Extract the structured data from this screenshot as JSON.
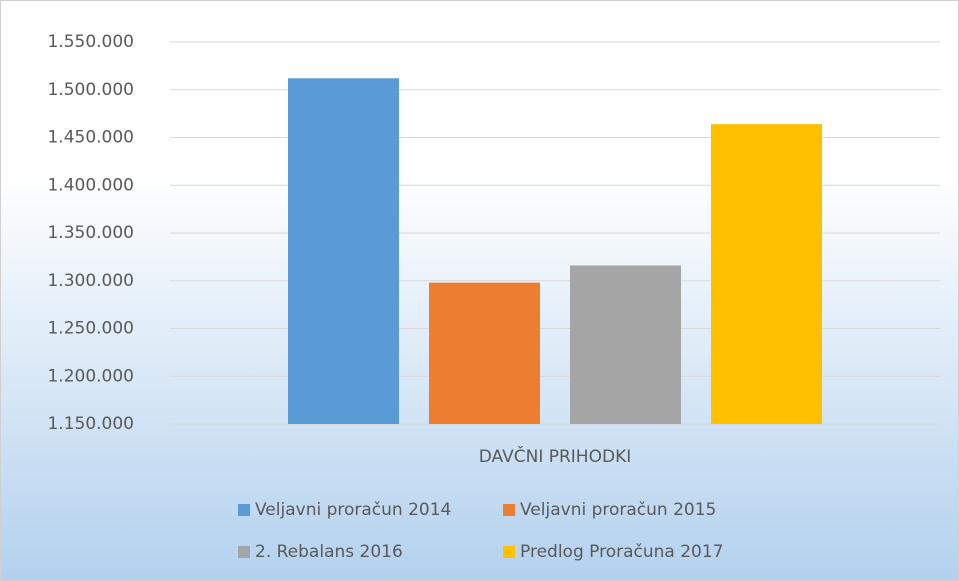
{
  "chart_data": {
    "type": "bar",
    "categories": [
      "DAVČNI PRIHODKI"
    ],
    "series": [
      {
        "name": "Veljavni proračun 2014",
        "color": "#5b9bd5",
        "values": [
          1512000
        ]
      },
      {
        "name": "Veljavni proračun 2015",
        "color": "#ed7d31",
        "values": [
          1298000
        ]
      },
      {
        "name": "2. Rebalans 2016",
        "color": "#a5a5a5",
        "values": [
          1316000
        ]
      },
      {
        "name": "Predlog Proračuna 2017",
        "color": "#ffc000",
        "values": [
          1464000
        ]
      }
    ],
    "ylim": [
      1150000,
      1550000
    ],
    "yticks": [
      {
        "value": 1150000,
        "label": "1.150.000"
      },
      {
        "value": 1200000,
        "label": "1.200.000"
      },
      {
        "value": 1250000,
        "label": "1.250.000"
      },
      {
        "value": 1300000,
        "label": "1.300.000"
      },
      {
        "value": 1350000,
        "label": "1.350.000"
      },
      {
        "value": 1400000,
        "label": "1.400.000"
      },
      {
        "value": 1450000,
        "label": "1.450.000"
      },
      {
        "value": 1500000,
        "label": "1.500.000"
      },
      {
        "value": 1550000,
        "label": "1.550.000"
      }
    ],
    "grid": true,
    "legend": "bottom"
  }
}
